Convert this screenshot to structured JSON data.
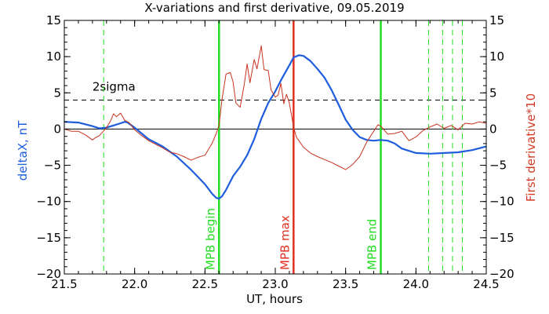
{
  "chart_data": {
    "type": "line",
    "title": "X-variations and first derivative, 09.05.2019",
    "xlabel": "UT, hours",
    "ylabel_left": "deltaX, nT",
    "ylabel_right": "First derivative*10",
    "xlim": [
      21.5,
      24.5
    ],
    "ylim": [
      -20,
      15
    ],
    "xticks": [
      "21.5",
      "22.0",
      "22.5",
      "23.0",
      "23.5",
      "24.0",
      "24.5"
    ],
    "yticks": [
      "15",
      "10",
      "5",
      "0",
      "−5",
      "−10",
      "−15",
      "−20"
    ],
    "threshold": {
      "label": "2sigma",
      "value": 4
    },
    "colors": {
      "deltax": "#1e5ddc",
      "derivative": "#c8321e",
      "mpb": "#22dd22",
      "max": "#e03020",
      "axes": "#000000"
    },
    "series": [
      {
        "name": "deltaX, nT",
        "axis": "left",
        "x": [
          21.5,
          21.6,
          21.7,
          21.75,
          21.8,
          21.85,
          21.9,
          21.93,
          21.95,
          22.0,
          22.05,
          22.1,
          22.2,
          22.3,
          22.4,
          22.5,
          22.55,
          22.58,
          22.6,
          22.62,
          22.65,
          22.7,
          22.75,
          22.8,
          22.85,
          22.9,
          22.95,
          23.0,
          23.05,
          23.1,
          23.13,
          23.17,
          23.2,
          23.25,
          23.3,
          23.35,
          23.4,
          23.45,
          23.5,
          23.55,
          23.6,
          23.65,
          23.7,
          23.75,
          23.8,
          23.85,
          23.9,
          24.0,
          24.1,
          24.2,
          24.3,
          24.4,
          24.5
        ],
        "y": [
          1.0,
          0.9,
          0.4,
          0.1,
          0.2,
          0.5,
          0.8,
          1.0,
          0.9,
          0.2,
          -0.6,
          -1.4,
          -2.4,
          -3.8,
          -5.6,
          -7.6,
          -8.9,
          -9.5,
          -9.6,
          -9.3,
          -8.4,
          -6.5,
          -5.2,
          -3.6,
          -1.4,
          1.4,
          3.6,
          5.2,
          7.1,
          8.8,
          9.9,
          10.2,
          10.1,
          9.4,
          8.3,
          7.1,
          5.4,
          3.4,
          1.3,
          -0.1,
          -1.1,
          -1.5,
          -1.6,
          -1.5,
          -1.6,
          -2.0,
          -2.7,
          -3.3,
          -3.4,
          -3.3,
          -3.2,
          -2.9,
          -2.4
        ]
      },
      {
        "name": "First derivative*10",
        "axis": "right",
        "x": [
          21.5,
          21.55,
          21.6,
          21.65,
          21.7,
          21.72,
          21.75,
          21.8,
          21.83,
          21.85,
          21.87,
          21.9,
          21.93,
          21.96,
          22.0,
          22.05,
          22.1,
          22.15,
          22.2,
          22.25,
          22.3,
          22.35,
          22.4,
          22.45,
          22.5,
          22.55,
          22.58,
          22.6,
          22.62,
          22.65,
          22.68,
          22.7,
          22.72,
          22.75,
          22.78,
          22.8,
          22.82,
          22.85,
          22.87,
          22.9,
          22.92,
          22.95,
          22.97,
          23.0,
          23.02,
          23.04,
          23.06,
          23.08,
          23.1,
          23.13,
          23.15,
          23.2,
          23.25,
          23.3,
          23.35,
          23.4,
          23.45,
          23.5,
          23.55,
          23.6,
          23.65,
          23.7,
          23.73,
          23.75,
          23.8,
          23.85,
          23.9,
          23.95,
          24.0,
          24.05,
          24.1,
          24.15,
          24.2,
          24.25,
          24.3,
          24.35,
          24.4,
          24.45,
          24.5
        ],
        "y": [
          0.0,
          -0.3,
          -0.3,
          -0.8,
          -1.5,
          -1.2,
          -0.9,
          0.2,
          1.2,
          2.1,
          1.7,
          2.2,
          1.2,
          0.9,
          -0.1,
          -0.9,
          -1.6,
          -2.1,
          -2.6,
          -3.2,
          -3.4,
          -3.8,
          -4.3,
          -3.9,
          -3.6,
          -2.0,
          -0.6,
          0.5,
          4.0,
          7.6,
          7.8,
          6.5,
          3.6,
          3.0,
          6.2,
          9.0,
          6.4,
          9.6,
          8.3,
          11.5,
          8.2,
          8.1,
          5.4,
          4.4,
          4.7,
          6.3,
          3.5,
          4.8,
          3.6,
          0.3,
          -1.1,
          -2.5,
          -3.3,
          -3.8,
          -4.2,
          -4.6,
          -5.1,
          -5.6,
          -4.9,
          -3.8,
          -1.8,
          -0.3,
          0.6,
          0.4,
          -0.7,
          -0.6,
          -0.3,
          -1.6,
          -1.1,
          -0.2,
          0.3,
          0.7,
          0.1,
          0.5,
          -0.1,
          0.8,
          0.7,
          1.0,
          0.8
        ]
      }
    ],
    "vlines": [
      {
        "x": 21.78,
        "style": "dashed",
        "color": "mpb",
        "label": ""
      },
      {
        "x": 22.6,
        "style": "solid",
        "color": "mpb",
        "label": "MPB begin"
      },
      {
        "x": 23.13,
        "style": "solid",
        "color": "max",
        "label": "MPB max"
      },
      {
        "x": 23.75,
        "style": "solid",
        "color": "mpb",
        "label": "MPB end"
      },
      {
        "x": 24.09,
        "style": "dashed",
        "color": "mpb",
        "label": ""
      },
      {
        "x": 24.19,
        "style": "dashed",
        "color": "mpb",
        "label": ""
      },
      {
        "x": 24.26,
        "style": "dashed",
        "color": "mpb",
        "label": ""
      },
      {
        "x": 24.33,
        "style": "dashed",
        "color": "mpb",
        "label": ""
      }
    ],
    "grid": false,
    "legend": "none"
  }
}
